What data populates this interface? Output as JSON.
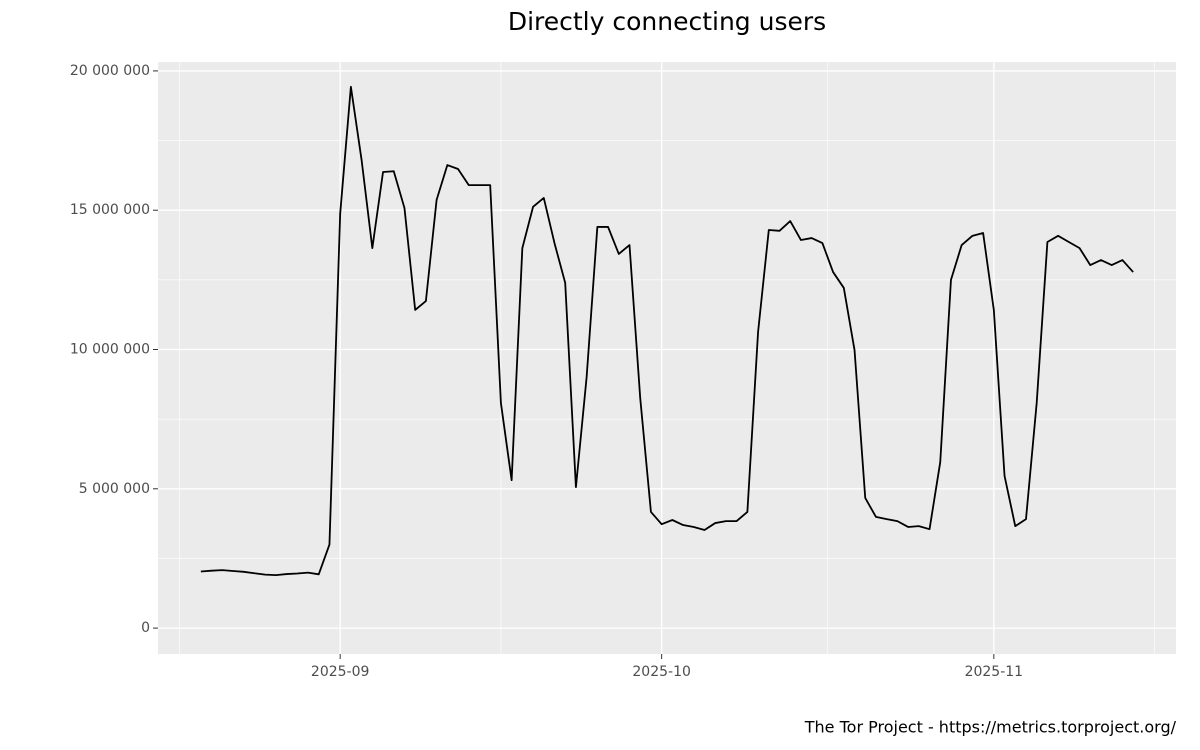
{
  "chart_data": {
    "type": "line",
    "title": "Directly connecting users",
    "caption": "The Tor Project - https://metrics.torproject.org/",
    "x": [
      "2025-08-19",
      "2025-08-20",
      "2025-08-21",
      "2025-08-22",
      "2025-08-23",
      "2025-08-24",
      "2025-08-25",
      "2025-08-26",
      "2025-08-27",
      "2025-08-28",
      "2025-08-29",
      "2025-08-30",
      "2025-08-31",
      "2025-09-01",
      "2025-09-02",
      "2025-09-03",
      "2025-09-04",
      "2025-09-05",
      "2025-09-06",
      "2025-09-07",
      "2025-09-08",
      "2025-09-09",
      "2025-09-10",
      "2025-09-11",
      "2025-09-12",
      "2025-09-13",
      "2025-09-14",
      "2025-09-15",
      "2025-09-16",
      "2025-09-17",
      "2025-09-18",
      "2025-09-19",
      "2025-09-20",
      "2025-09-21",
      "2025-09-22",
      "2025-09-23",
      "2025-09-24",
      "2025-09-25",
      "2025-09-26",
      "2025-09-27",
      "2025-09-28",
      "2025-09-29",
      "2025-09-30",
      "2025-10-01",
      "2025-10-02",
      "2025-10-03",
      "2025-10-04",
      "2025-10-05",
      "2025-10-06",
      "2025-10-07",
      "2025-10-08",
      "2025-10-09",
      "2025-10-10",
      "2025-10-11",
      "2025-10-12",
      "2025-10-13",
      "2025-10-14",
      "2025-10-15",
      "2025-10-16",
      "2025-10-17",
      "2025-10-18",
      "2025-10-19",
      "2025-10-20",
      "2025-10-21",
      "2025-10-22",
      "2025-10-23",
      "2025-10-24",
      "2025-10-25",
      "2025-10-26",
      "2025-10-27",
      "2025-10-28",
      "2025-10-29",
      "2025-10-30",
      "2025-10-31",
      "2025-11-01",
      "2025-11-02",
      "2025-11-03",
      "2025-11-04",
      "2025-11-05",
      "2025-11-06",
      "2025-11-07",
      "2025-11-08",
      "2025-11-09",
      "2025-11-10",
      "2025-11-11",
      "2025-11-12",
      "2025-11-13",
      "2025-11-14"
    ],
    "series": [
      {
        "color": "#000000",
        "values": [
          2030000,
          2060000,
          2080000,
          2050000,
          2020000,
          1970000,
          1920000,
          1900000,
          1940000,
          1960000,
          1990000,
          1930000,
          3000000,
          14870000,
          19430000,
          16800000,
          13640000,
          16370000,
          16400000,
          15080000,
          11420000,
          11740000,
          15370000,
          16620000,
          16480000,
          15900000,
          15900000,
          15900000,
          8080000,
          5310000,
          13640000,
          15120000,
          15440000,
          13820000,
          12390000,
          5060000,
          9010000,
          14400000,
          14400000,
          13430000,
          13750000,
          8260000,
          4170000,
          3730000,
          3880000,
          3700000,
          3630000,
          3520000,
          3770000,
          3840000,
          3840000,
          4170000,
          10630000,
          14290000,
          14260000,
          14610000,
          13930000,
          14000000,
          13820000,
          12780000,
          12210000,
          9980000,
          4670000,
          3990000,
          3910000,
          3840000,
          3630000,
          3660000,
          3550000,
          5960000,
          12500000,
          13750000,
          14080000,
          14180000,
          11420000,
          5460000,
          3660000,
          3910000,
          8080000,
          13860000,
          14080000,
          13860000,
          13640000,
          13030000,
          13210000,
          13030000,
          13210000,
          12780000
        ]
      }
    ],
    "xlim": [
      "2025-08-15",
      "2025-11-18"
    ],
    "xticks": [
      {
        "value": "2025-09-01",
        "label": "2025-09"
      },
      {
        "value": "2025-10-01",
        "label": "2025-10"
      },
      {
        "value": "2025-11-01",
        "label": "2025-11"
      }
    ],
    "ylim": [
      -930000,
      20320000
    ],
    "yticks": [
      0,
      {
        "value": 5000000,
        "label": "5 000 000"
      },
      {
        "value": 10000000,
        "label": "10 000 000"
      },
      {
        "value": 15000000,
        "label": "15 000 000"
      },
      {
        "value": 20000000,
        "label": "20 000 000"
      }
    ],
    "grid": true
  }
}
